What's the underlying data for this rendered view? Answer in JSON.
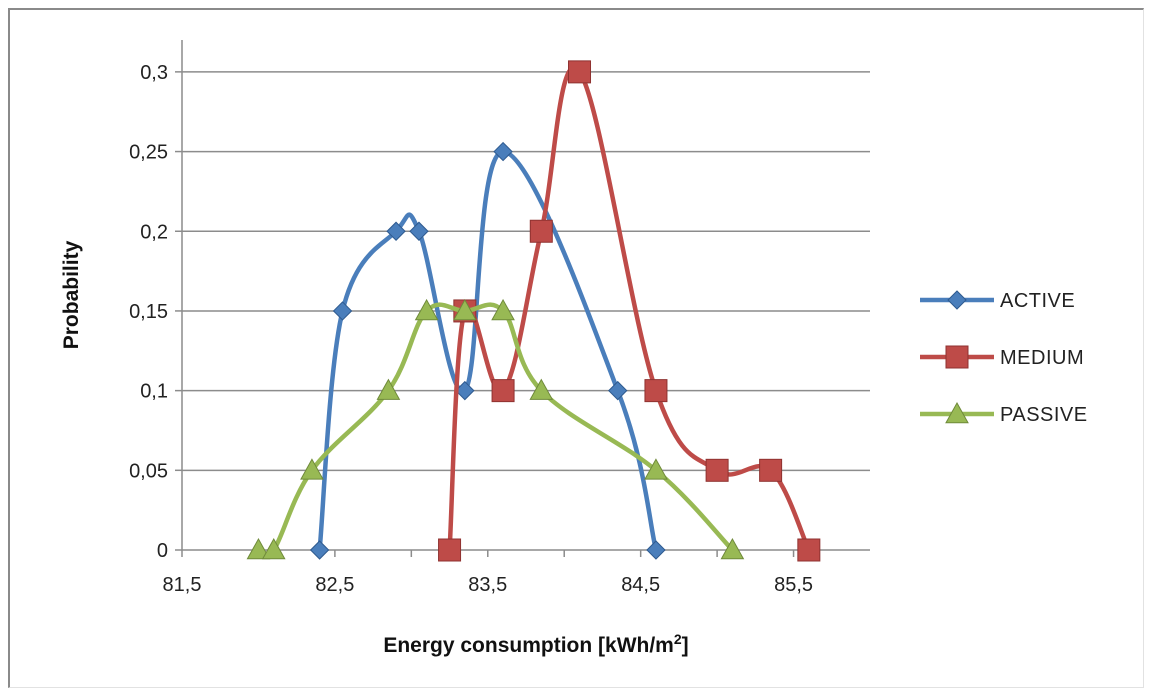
{
  "chart_data": {
    "type": "line",
    "title": "",
    "xlabel": "Energy consumption [kWh/m",
    "xlabel_superscript": "2",
    "xlabel_suffix": "]",
    "ylabel": "Probability",
    "xlim": [
      81.5,
      86.0
    ],
    "ylim": [
      0,
      0.32
    ],
    "x_ticks": [
      81.5,
      82.5,
      83.5,
      84.5,
      85.5
    ],
    "x_tick_labels": [
      "81,5",
      "82,5",
      "83,5",
      "84,5",
      "85,5"
    ],
    "y_ticks": [
      0,
      0.05,
      0.1,
      0.15,
      0.2,
      0.25,
      0.3
    ],
    "y_tick_labels": [
      "0",
      "0,05",
      "0,1",
      "0,15",
      "0,2",
      "0,25",
      "0,3"
    ],
    "grid": true,
    "smooth": true,
    "legend_position": "right",
    "series": [
      {
        "name": "ACTIVE",
        "color": "#4a7ebb",
        "marker": "diamond",
        "x": [
          82.4,
          82.55,
          82.9,
          83.05,
          83.35,
          83.6,
          84.35,
          84.6
        ],
        "y": [
          0,
          0.15,
          0.2,
          0.2,
          0.1,
          0.25,
          0.1,
          0
        ]
      },
      {
        "name": "MEDIUM",
        "color": "#be4b48",
        "marker": "square",
        "x": [
          83.25,
          83.35,
          83.6,
          83.85,
          84.1,
          84.6,
          85.0,
          85.35,
          85.6
        ],
        "y": [
          0,
          0.15,
          0.1,
          0.2,
          0.3,
          0.1,
          0.05,
          0.05,
          0
        ]
      },
      {
        "name": "PASSIVE",
        "color": "#98b954",
        "marker": "triangle",
        "x": [
          82.0,
          82.1,
          82.35,
          82.85,
          83.1,
          83.35,
          83.6,
          83.85,
          84.6,
          85.1
        ],
        "y": [
          0,
          0,
          0.05,
          0.1,
          0.15,
          0.15,
          0.15,
          0.1,
          0.05,
          0
        ]
      }
    ]
  }
}
